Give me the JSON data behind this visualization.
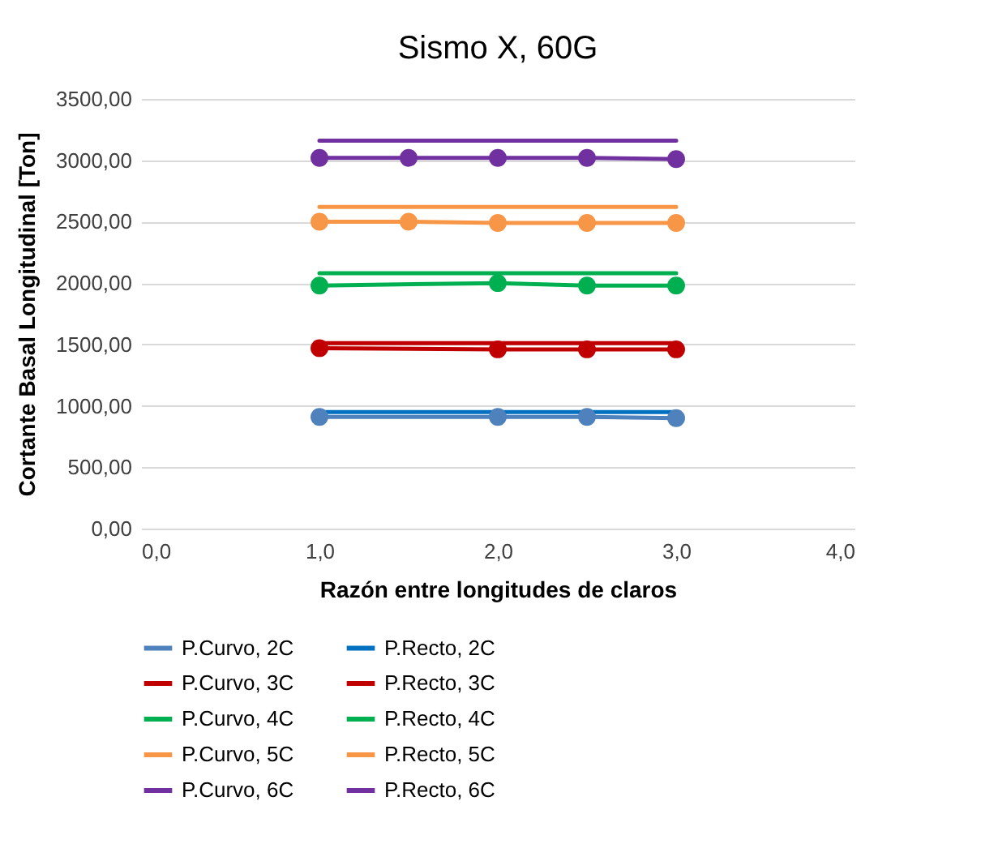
{
  "chart_data": {
    "type": "line",
    "title": "Sismo X, 60G",
    "xlabel": "Razón entre longitudes de claros",
    "ylabel": "Cortante Basal Longitudinal [Ton]",
    "xlim": [
      0,
      4
    ],
    "xticks": [
      {
        "value": 0,
        "label": "0,0"
      },
      {
        "value": 1,
        "label": "1,0"
      },
      {
        "value": 2,
        "label": "2,0"
      },
      {
        "value": 3,
        "label": "3,0"
      },
      {
        "value": 4,
        "label": "4,0"
      }
    ],
    "ylim": [
      0,
      3500
    ],
    "yticks": [
      {
        "value": 0,
        "label": "0,00"
      },
      {
        "value": 500,
        "label": "500,00"
      },
      {
        "value": 1000,
        "label": "1000,00"
      },
      {
        "value": 1500,
        "label": "1500,00"
      },
      {
        "value": 2000,
        "label": "2000,00"
      },
      {
        "value": 2500,
        "label": "2500,00"
      },
      {
        "value": 3000,
        "label": "3000,00"
      },
      {
        "value": 3500,
        "label": "3500,00"
      }
    ],
    "grid": "y",
    "legend": "bottom",
    "line_style": "solid",
    "series": [
      {
        "name": "P.Curvo, 2C",
        "color": "#4f81bd",
        "marker": "circle",
        "x": [
          1,
          2,
          2.5,
          3
        ],
        "values": [
          910,
          910,
          910,
          900
        ]
      },
      {
        "name": "P.Recto, 2C",
        "color": "#0070c0",
        "marker": "none",
        "x": [
          1,
          3
        ],
        "values": [
          950,
          950
        ]
      },
      {
        "name": "P.Curvo, 3C",
        "color": "#c00000",
        "marker": "circle",
        "x": [
          1,
          2,
          2.5,
          3
        ],
        "values": [
          1470,
          1460,
          1460,
          1460
        ]
      },
      {
        "name": "P.Recto, 3C",
        "color": "#c00000",
        "marker": "none",
        "x": [
          1,
          3
        ],
        "values": [
          1510,
          1510
        ]
      },
      {
        "name": "P.Curvo, 4C",
        "color": "#00b050",
        "marker": "circle",
        "x": [
          1,
          2,
          2.5,
          3
        ],
        "values": [
          1980,
          2000,
          1980,
          1980
        ]
      },
      {
        "name": "P.Recto, 4C",
        "color": "#00b050",
        "marker": "none",
        "x": [
          1,
          3
        ],
        "values": [
          2080,
          2080
        ]
      },
      {
        "name": "P.Curvo, 5C",
        "color": "#f79646",
        "marker": "circle",
        "x": [
          1,
          1.5,
          2,
          2.5,
          3
        ],
        "values": [
          2500,
          2500,
          2490,
          2490,
          2490
        ]
      },
      {
        "name": "P.Recto, 5C",
        "color": "#f79646",
        "marker": "none",
        "x": [
          1,
          3
        ],
        "values": [
          2620,
          2620
        ]
      },
      {
        "name": "P.Curvo, 6C",
        "color": "#7030a0",
        "marker": "circle",
        "x": [
          1,
          1.5,
          2,
          2.5,
          3
        ],
        "values": [
          3020,
          3020,
          3020,
          3020,
          3010
        ]
      },
      {
        "name": "P.Recto, 6C",
        "color": "#7030a0",
        "marker": "none",
        "x": [
          1,
          3
        ],
        "values": [
          3160,
          3160
        ]
      }
    ]
  }
}
